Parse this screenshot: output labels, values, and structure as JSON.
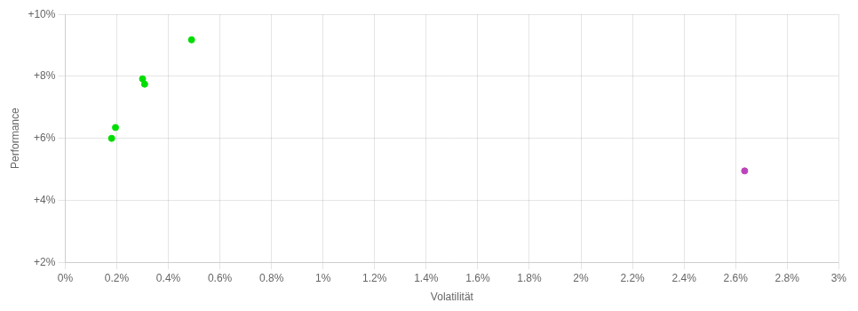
{
  "chart_data": {
    "type": "scatter",
    "xlabel": "Volatilität",
    "ylabel": "Performance",
    "series": [
      {
        "color": "#00dd00",
        "x": [
          0.00195,
          0.0018,
          0.003,
          0.00308,
          0.0049
        ],
        "values": [
          0.0635,
          0.06,
          0.0792,
          0.0775,
          0.0918
        ]
      },
      {
        "color": "#bb44bb",
        "x": [
          0.02635
        ],
        "values": [
          0.0495
        ]
      }
    ],
    "xlim": [
      0,
      0.03
    ],
    "xticks": [
      {
        "value": 0,
        "label": "0%"
      },
      {
        "value": 0.002,
        "label": "0.2%"
      },
      {
        "value": 0.004,
        "label": "0.4%"
      },
      {
        "value": 0.006,
        "label": "0.6%"
      },
      {
        "value": 0.008,
        "label": "0.8%"
      },
      {
        "value": 0.01,
        "label": "1%"
      },
      {
        "value": 0.012,
        "label": "1.2%"
      },
      {
        "value": 0.014,
        "label": "1.4%"
      },
      {
        "value": 0.016,
        "label": "1.6%"
      },
      {
        "value": 0.018,
        "label": "1.8%"
      },
      {
        "value": 0.02,
        "label": "2%"
      },
      {
        "value": 0.022,
        "label": "2.2%"
      },
      {
        "value": 0.024,
        "label": "2.4%"
      },
      {
        "value": 0.026,
        "label": "2.6%"
      },
      {
        "value": 0.028,
        "label": "2.8%"
      },
      {
        "value": 0.03,
        "label": "3%"
      }
    ],
    "ylim": [
      0.02,
      0.1
    ],
    "yticks": [
      {
        "value": 0.02,
        "label": "+2%"
      },
      {
        "value": 0.04,
        "label": "+4%"
      },
      {
        "value": 0.06,
        "label": "+6%"
      },
      {
        "value": 0.08,
        "label": "+8%"
      },
      {
        "value": 0.1,
        "label": "+10%"
      }
    ],
    "grid": true
  }
}
